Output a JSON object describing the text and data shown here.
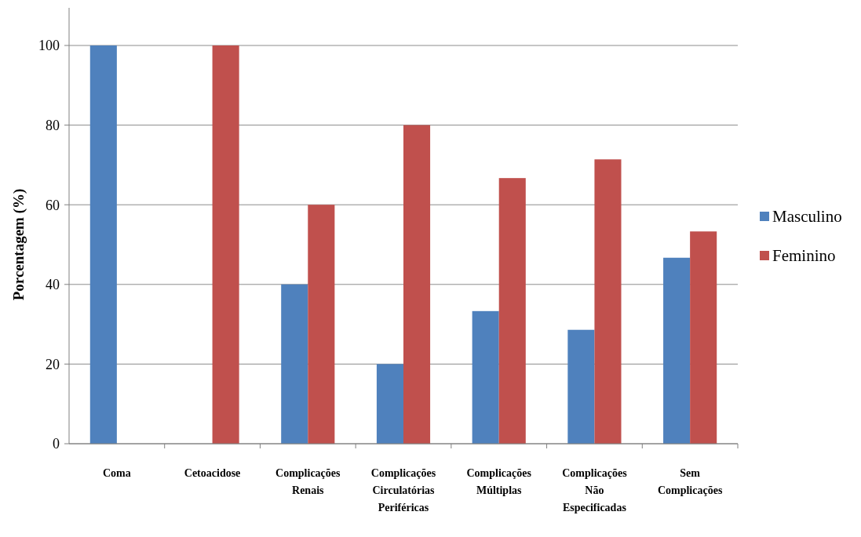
{
  "chart_data": {
    "type": "bar",
    "ylabel": "Porcentagem (%)",
    "categories": [
      "Coma",
      "Cetoacidose",
      "Complicações Renais",
      "Complicações Circulatórias Periféricas",
      "Complicações Múltiplas",
      "Complicações Não Especificadas",
      "Sem Complicações"
    ],
    "series": [
      {
        "name": "Masculino",
        "color": "#4f81bd",
        "values": [
          100,
          0,
          40,
          20,
          33.3,
          28.6,
          46.7
        ]
      },
      {
        "name": "Feminino",
        "color": "#c0504d",
        "values": [
          0,
          100,
          60,
          80,
          66.7,
          71.4,
          53.3
        ]
      }
    ],
    "ylim": [
      0,
      100
    ],
    "yticks": [
      0,
      20,
      40,
      60,
      80,
      100
    ],
    "grid": "y",
    "legend": "right"
  }
}
